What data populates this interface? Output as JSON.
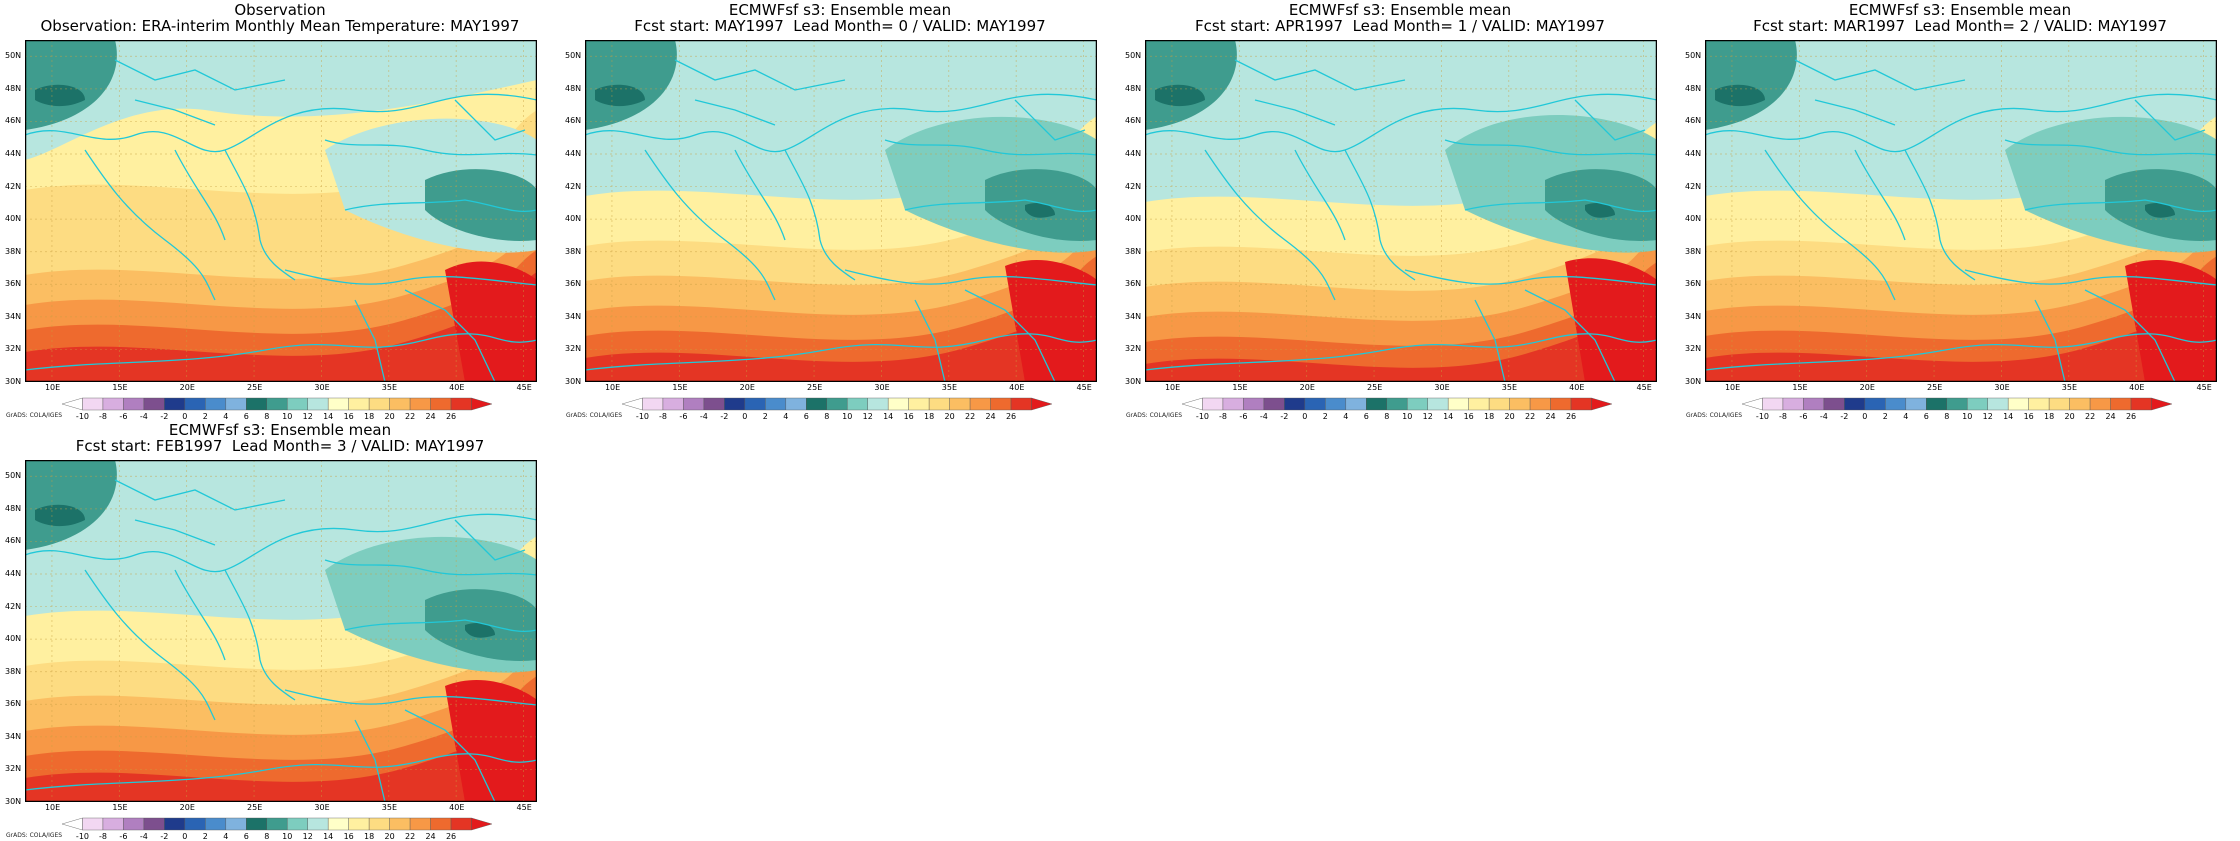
{
  "panels": [
    {
      "title1": "Observation",
      "title2": "Observation: ERA-interim Monthly Mean Temperature: MAY1997",
      "variant": 0
    },
    {
      "title1": "ECMWFsf s3: Ensemble mean",
      "title2": "Fcst start: MAY1997  Lead Month= 0 / VALID: MAY1997",
      "variant": 1
    },
    {
      "title1": "ECMWFsf s3: Ensemble mean",
      "title2": "Fcst start: APR1997  Lead Month= 1 / VALID: MAY1997",
      "variant": 2
    },
    {
      "title1": "ECMWFsf s3: Ensemble mean",
      "title2": "Fcst start: MAR1997  Lead Month= 2 / VALID: MAY1997",
      "variant": 3
    },
    {
      "title1": "ECMWFsf s3: Ensemble mean",
      "title2": "Fcst start: FEB1997  Lead Month= 3 / VALID: MAY1997",
      "variant": 4
    }
  ],
  "axes": {
    "lat_labels": [
      "50N",
      "48N",
      "46N",
      "44N",
      "42N",
      "40N",
      "38N",
      "36N",
      "34N",
      "32N",
      "30N"
    ],
    "lon_labels": [
      "10E",
      "15E",
      "20E",
      "25E",
      "30E",
      "35E",
      "40E",
      "45E"
    ],
    "lat_range": [
      30,
      51
    ],
    "lon_range": [
      8,
      46
    ]
  },
  "colorbar": {
    "labels": [
      "-10",
      "-8",
      "-6",
      "-4",
      "-2",
      "0",
      "2",
      "4",
      "6",
      "8",
      "10",
      "12",
      "14",
      "16",
      "18",
      "20",
      "22",
      "24",
      "26"
    ],
    "colors": [
      "#ffffff",
      "#f2d7f2",
      "#d8aee0",
      "#b07fc0",
      "#7d4f8e",
      "#1f3b8c",
      "#2a64b4",
      "#4a8ccc",
      "#7fb2de",
      "#1c7268",
      "#3f9c8e",
      "#7dcdbf",
      "#b7e6df",
      "#ffffc8",
      "#fff0a0",
      "#fddc82",
      "#fbbe62",
      "#f79846",
      "#ee6a2e",
      "#e43524",
      "#e31a1c"
    ]
  },
  "credit": "GrADS: COLA/IGES"
}
